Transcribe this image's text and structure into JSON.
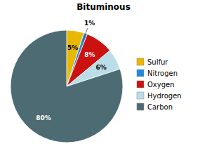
{
  "chart_data": {
    "type": "pie",
    "title": "Bituminous",
    "categories": [
      "Sulfur",
      "Nitrogen",
      "Oxygen",
      "Hydrogen",
      "Carbon"
    ],
    "values": [
      5,
      1,
      8,
      6,
      80
    ],
    "value_labels": [
      "5%",
      "1%",
      "8%",
      "6%",
      "80%"
    ],
    "colors": [
      "#E8B800",
      "#2288DD",
      "#CC1111",
      "#BBDDE8",
      "#4D6B72"
    ],
    "data_labels": true,
    "legend": "right"
  }
}
